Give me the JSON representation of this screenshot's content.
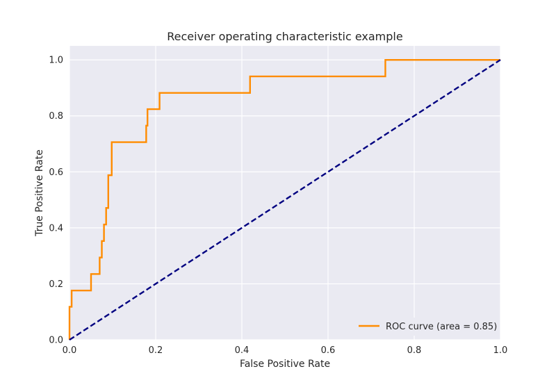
{
  "chart_data": {
    "type": "line",
    "title": "Receiver operating characteristic example",
    "xlabel": "False Positive Rate",
    "ylabel": "True Positive Rate",
    "xlim": [
      0.0,
      1.0
    ],
    "ylim": [
      0.0,
      1.05
    ],
    "xticks": [
      0.0,
      0.2,
      0.4,
      0.6,
      0.8,
      1.0
    ],
    "yticks": [
      0.0,
      0.2,
      0.4,
      0.6,
      0.8,
      1.0
    ],
    "xtick_labels": [
      "0.0",
      "0.2",
      "0.4",
      "0.6",
      "0.8",
      "1.0"
    ],
    "ytick_labels": [
      "0.0",
      "0.2",
      "0.4",
      "0.6",
      "0.8",
      "1.0"
    ],
    "grid": true,
    "legend_position": "lower-right",
    "background_color": "#eaeaf2",
    "grid_color": "#ffffff",
    "series": [
      {
        "name": "ROC curve (area = 0.85)",
        "color": "#ff8c00",
        "style": "solid",
        "x": [
          0.0,
          0.0,
          0.005,
          0.005,
          0.05,
          0.05,
          0.07,
          0.07,
          0.075,
          0.075,
          0.08,
          0.08,
          0.085,
          0.085,
          0.09,
          0.09,
          0.098,
          0.098,
          0.178,
          0.178,
          0.181,
          0.181,
          0.209,
          0.209,
          0.419,
          0.419,
          0.733,
          0.733,
          1.0
        ],
        "y": [
          0.0,
          0.118,
          0.118,
          0.176,
          0.176,
          0.235,
          0.235,
          0.294,
          0.294,
          0.353,
          0.353,
          0.412,
          0.412,
          0.471,
          0.471,
          0.588,
          0.588,
          0.706,
          0.706,
          0.765,
          0.765,
          0.824,
          0.824,
          0.882,
          0.882,
          0.941,
          0.941,
          1.0,
          1.0
        ]
      },
      {
        "name": "",
        "color": "#000080",
        "style": "dashed",
        "x": [
          0.0,
          1.0
        ],
        "y": [
          0.0,
          1.0
        ]
      }
    ]
  }
}
